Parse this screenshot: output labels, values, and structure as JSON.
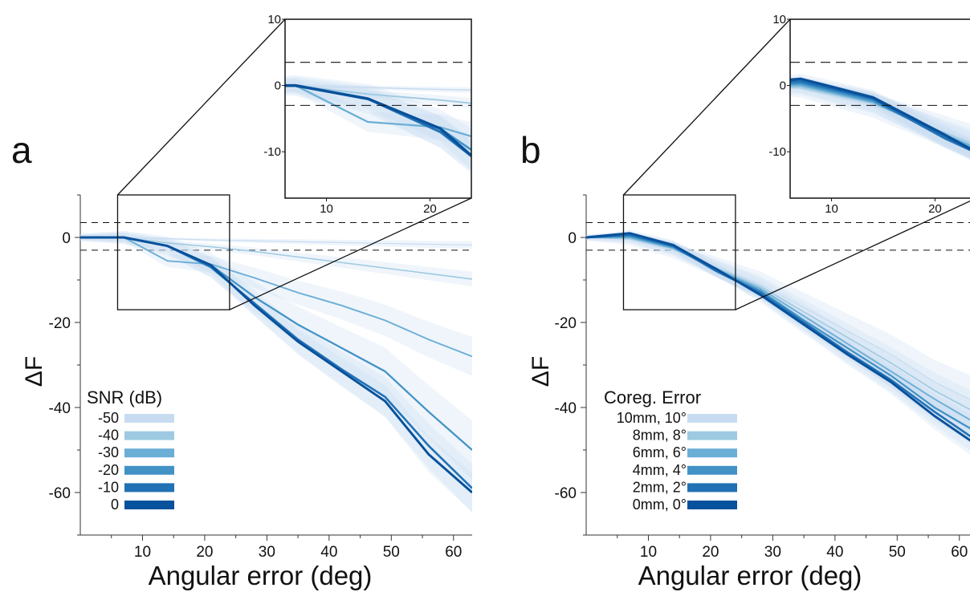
{
  "colors": {
    "series": [
      "#c7dcf0",
      "#9ecae1",
      "#6baed6",
      "#4292c6",
      "#2171b5",
      "#08519c"
    ],
    "band": "#c6dbef",
    "axis": "#333333",
    "reference_line": "#111111"
  },
  "chart_data": [
    {
      "type": "line",
      "panel": "a",
      "xlabel": "Angular error (deg)",
      "ylabel": "ΔF",
      "xlim": [
        0,
        63
      ],
      "ylim": [
        -70,
        10
      ],
      "xticks": [
        10,
        20,
        30,
        40,
        50,
        60
      ],
      "yticks": [
        0,
        -20,
        -40,
        -60
      ],
      "reference_lines": [
        3.5,
        -3
      ],
      "legend_title": "SNR (dB)",
      "legend_position": "lower-left",
      "x": [
        0,
        7,
        14,
        21,
        28,
        35,
        42,
        49,
        56,
        63
      ],
      "series": [
        {
          "name": "-50",
          "values": [
            0,
            0,
            -0.3,
            -0.6,
            -0.8,
            -1.0,
            -1.2,
            -1.4,
            -1.6,
            -1.8
          ],
          "band": 0.8
        },
        {
          "name": "-40",
          "values": [
            0,
            0,
            -1.3,
            -2.2,
            -3.3,
            -4.6,
            -5.9,
            -7.2,
            -8.5,
            -9.8
          ],
          "band": 1.5
        },
        {
          "name": "-30",
          "values": [
            0,
            0,
            -5.5,
            -6.3,
            -9.5,
            -13,
            -16,
            -19.5,
            -24,
            -28
          ],
          "band": 4
        },
        {
          "name": "-20",
          "values": [
            0,
            0,
            -2,
            -6.5,
            -14,
            -20.5,
            -26,
            -31.5,
            -41,
            -50
          ],
          "band": 6
        },
        {
          "name": "-10",
          "values": [
            0,
            0,
            -2,
            -7,
            -15.5,
            -24,
            -31,
            -37.5,
            -49,
            -59
          ],
          "band": 5
        },
        {
          "name": "0",
          "values": [
            0,
            0,
            -2,
            -6.5,
            -16,
            -24.5,
            -31.5,
            -38.5,
            -51,
            -60
          ],
          "band": 4
        }
      ],
      "inset": {
        "xlim": [
          6,
          24
        ],
        "ylim": [
          -17,
          10
        ],
        "xticks": [
          10,
          20
        ],
        "yticks": [
          10,
          0,
          -10
        ]
      }
    },
    {
      "type": "line",
      "panel": "b",
      "xlabel": "Angular error (deg)",
      "ylabel": "ΔF",
      "xlim": [
        0,
        63
      ],
      "ylim": [
        -70,
        10
      ],
      "xticks": [
        10,
        20,
        30,
        40,
        50,
        60
      ],
      "yticks": [
        0,
        -20,
        -40,
        -60
      ],
      "reference_lines": [
        3.5,
        -3
      ],
      "legend_title": "Coreg. Error",
      "legend_position": "lower-left",
      "x": [
        0,
        7,
        14,
        21,
        28,
        35,
        42,
        49,
        56,
        63
      ],
      "series": [
        {
          "name": "10mm, 10°",
          "values": [
            0,
            -0.5,
            -3,
            -7,
            -11,
            -16.5,
            -22,
            -27.5,
            -34,
            -39
          ],
          "band": 5
        },
        {
          "name": "8mm, 8°",
          "values": [
            0,
            -0.3,
            -2.7,
            -7.2,
            -11.5,
            -17.5,
            -23.5,
            -29.5,
            -36,
            -41.5
          ],
          "band": 4
        },
        {
          "name": "6mm, 6°",
          "values": [
            0,
            0,
            -2.5,
            -7.5,
            -12,
            -18.5,
            -25,
            -31.5,
            -38,
            -44
          ],
          "band": 4
        },
        {
          "name": "4mm, 4°",
          "values": [
            0,
            0.3,
            -2.3,
            -7.8,
            -12.5,
            -19.5,
            -26,
            -32.5,
            -40,
            -46
          ],
          "band": 3
        },
        {
          "name": "2mm, 2°",
          "values": [
            0,
            0.6,
            -2,
            -8,
            -13,
            -20,
            -27,
            -33.5,
            -41,
            -48
          ],
          "band": 3
        },
        {
          "name": "0mm, 0°",
          "values": [
            0,
            1,
            -1.8,
            -7.5,
            -13.5,
            -20.5,
            -27.5,
            -34,
            -42,
            -49
          ],
          "band": 3
        }
      ],
      "inset": {
        "xlim": [
          6,
          24
        ],
        "ylim": [
          -17,
          10
        ],
        "xticks": [
          10,
          20
        ],
        "yticks": [
          10,
          0,
          -10
        ]
      }
    }
  ]
}
